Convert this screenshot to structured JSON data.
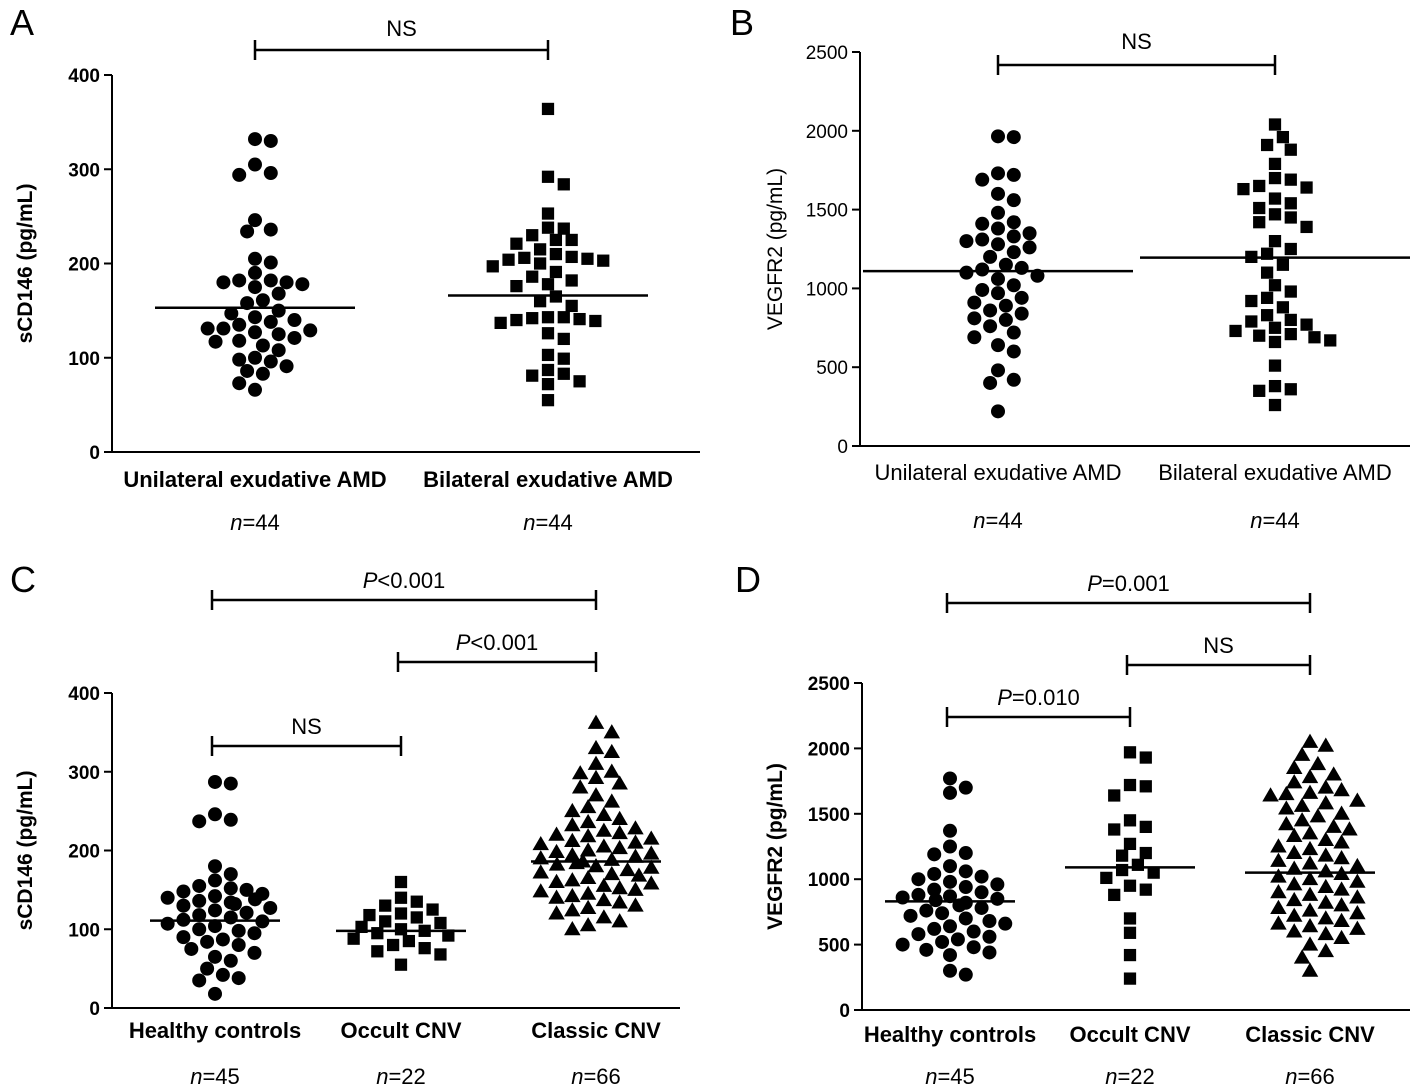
{
  "chart_data": [
    {
      "type": "scatter",
      "panel": "A",
      "ylabel": "sCD146 (pg/mL)",
      "ylim": [
        0,
        400
      ],
      "yticks": [
        0,
        100,
        200,
        300,
        400
      ],
      "bold_text": true,
      "categories": [
        "Unilateral exudative AMD",
        "Bilateral exudative AMD"
      ],
      "n_labels": [
        "44",
        "44"
      ],
      "series": [
        {
          "category": "Unilateral exudative AMD",
          "marker": "circle",
          "mean": 153,
          "values": [
            332,
            330,
            305,
            296,
            294,
            246,
            236,
            234,
            205,
            201,
            190,
            182,
            182,
            180,
            180,
            178,
            175,
            168,
            161,
            158,
            150,
            147,
            143,
            140,
            138,
            135,
            131,
            131,
            129,
            127,
            125,
            121,
            118,
            117,
            113,
            108,
            100,
            98,
            96,
            91,
            86,
            83,
            73,
            66
          ]
        },
        {
          "category": "Bilateral exudative AMD",
          "marker": "square",
          "mean": 166,
          "values": [
            364,
            292,
            284,
            253,
            238,
            237,
            230,
            225,
            225,
            221,
            215,
            210,
            207,
            206,
            205,
            204,
            203,
            200,
            197,
            191,
            186,
            182,
            178,
            176,
            165,
            160,
            155,
            143,
            143,
            142,
            141,
            140,
            139,
            137,
            126,
            120,
            103,
            99,
            87,
            83,
            81,
            75,
            72,
            55
          ]
        }
      ],
      "significance": [
        {
          "from": 0,
          "to": 1,
          "label": "NS",
          "italic_prefix": ""
        }
      ]
    },
    {
      "type": "scatter",
      "panel": "B",
      "ylabel": "VEGFR2 (pg/mL)",
      "ylim": [
        0,
        2500
      ],
      "yticks": [
        0,
        500,
        1000,
        1500,
        2000,
        2500
      ],
      "bold_text": false,
      "categories": [
        "Unilateral exudative AMD",
        "Bilateral exudative AMD"
      ],
      "n_labels": [
        "44",
        "44"
      ],
      "series": [
        {
          "category": "Unilateral exudative AMD",
          "marker": "circle",
          "mean": 1110,
          "values": [
            1965,
            1960,
            1730,
            1720,
            1690,
            1600,
            1560,
            1480,
            1420,
            1410,
            1380,
            1350,
            1330,
            1310,
            1300,
            1280,
            1260,
            1230,
            1200,
            1150,
            1130,
            1120,
            1100,
            1080,
            1060,
            1020,
            990,
            970,
            940,
            910,
            890,
            860,
            840,
            810,
            800,
            760,
            720,
            690,
            640,
            600,
            480,
            420,
            400,
            220
          ]
        },
        {
          "category": "Bilateral exudative AMD",
          "marker": "square",
          "mean": 1195,
          "values": [
            2040,
            1960,
            1910,
            1880,
            1790,
            1700,
            1690,
            1650,
            1640,
            1630,
            1570,
            1540,
            1510,
            1470,
            1450,
            1420,
            1390,
            1300,
            1250,
            1220,
            1200,
            1150,
            1100,
            1020,
            980,
            940,
            920,
            880,
            830,
            800,
            790,
            770,
            750,
            730,
            710,
            700,
            690,
            670,
            660,
            510,
            380,
            360,
            350,
            260
          ]
        }
      ],
      "significance": [
        {
          "from": 0,
          "to": 1,
          "label": "NS",
          "italic_prefix": ""
        }
      ]
    },
    {
      "type": "scatter",
      "panel": "C",
      "ylabel": "sCD146 (pg/mL)",
      "ylim": [
        0,
        400
      ],
      "yticks": [
        0,
        100,
        200,
        300,
        400
      ],
      "bold_text": true,
      "categories": [
        "Healthy controls",
        "Occult CNV",
        "Classic CNV"
      ],
      "n_labels": [
        "45",
        "22",
        "66"
      ],
      "series": [
        {
          "category": "Healthy controls",
          "marker": "circle",
          "mean": 111,
          "values": [
            287,
            285,
            246,
            239,
            237,
            180,
            170,
            162,
            155,
            152,
            150,
            148,
            145,
            142,
            140,
            138,
            136,
            134,
            132,
            130,
            127,
            124,
            121,
            118,
            115,
            112,
            110,
            107,
            104,
            100,
            98,
            95,
            90,
            87,
            84,
            80,
            75,
            70,
            65,
            60,
            50,
            42,
            38,
            35,
            18
          ]
        },
        {
          "category": "Occult CNV",
          "marker": "square",
          "mean": 98,
          "values": [
            160,
            140,
            135,
            130,
            125,
            120,
            118,
            115,
            110,
            108,
            103,
            100,
            98,
            95,
            92,
            88,
            85,
            80,
            76,
            72,
            68,
            55
          ]
        },
        {
          "category": "Classic CNV",
          "marker": "triangle",
          "mean": 186,
          "values": [
            362,
            350,
            330,
            325,
            310,
            300,
            298,
            292,
            285,
            280,
            270,
            262,
            255,
            250,
            245,
            240,
            236,
            232,
            228,
            225,
            222,
            220,
            218,
            215,
            212,
            210,
            208,
            205,
            203,
            200,
            198,
            196,
            194,
            192,
            190,
            188,
            186,
            184,
            182,
            180,
            178,
            175,
            172,
            170,
            168,
            165,
            162,
            160,
            158,
            155,
            152,
            150,
            148,
            145,
            142,
            140,
            137,
            134,
            130,
            127,
            124,
            120,
            115,
            110,
            105,
            100
          ]
        }
      ],
      "significance": [
        {
          "from": 0,
          "to": 1,
          "label": "NS",
          "italic_prefix": ""
        },
        {
          "from": 1,
          "to": 2,
          "label": "<0.001",
          "italic_prefix": "P"
        },
        {
          "from": 0,
          "to": 2,
          "label": "<0.001",
          "italic_prefix": "P"
        }
      ]
    },
    {
      "type": "scatter",
      "panel": "D",
      "ylabel": "VEGFR2 (pg/mL)",
      "ylim": [
        0,
        2500
      ],
      "yticks": [
        0,
        500,
        1000,
        1500,
        2000,
        2500
      ],
      "bold_text": true,
      "categories": [
        "Healthy controls",
        "Occult CNV",
        "Classic CNV"
      ],
      "n_labels": [
        "45",
        "22",
        "66"
      ],
      "series": [
        {
          "category": "Healthy controls",
          "marker": "circle",
          "mean": 830,
          "values": [
            1770,
            1700,
            1660,
            1370,
            1250,
            1200,
            1190,
            1100,
            1060,
            1040,
            1020,
            1000,
            980,
            960,
            940,
            920,
            900,
            880,
            870,
            860,
            850,
            840,
            820,
            800,
            780,
            760,
            740,
            720,
            700,
            680,
            660,
            640,
            620,
            600,
            580,
            560,
            540,
            520,
            500,
            480,
            460,
            440,
            420,
            300,
            270
          ]
        },
        {
          "category": "Occult CNV",
          "marker": "square",
          "mean": 1090,
          "values": [
            1970,
            1930,
            1720,
            1710,
            1640,
            1450,
            1400,
            1380,
            1270,
            1200,
            1180,
            1110,
            1070,
            1050,
            950,
            920,
            880,
            700,
            590,
            420,
            240,
            1010
          ]
        },
        {
          "category": "Classic CNV",
          "marker": "triangle",
          "mean": 1050,
          "values": [
            2050,
            2020,
            1950,
            1880,
            1850,
            1800,
            1780,
            1740,
            1700,
            1680,
            1660,
            1650,
            1640,
            1600,
            1580,
            1560,
            1540,
            1500,
            1480,
            1450,
            1420,
            1400,
            1380,
            1350,
            1330,
            1300,
            1280,
            1250,
            1230,
            1200,
            1180,
            1160,
            1140,
            1120,
            1100,
            1080,
            1060,
            1040,
            1020,
            1000,
            980,
            960,
            940,
            920,
            900,
            880,
            860,
            840,
            820,
            800,
            780,
            760,
            740,
            720,
            700,
            680,
            660,
            640,
            620,
            600,
            580,
            550,
            500,
            450,
            400,
            300
          ]
        }
      ],
      "significance": [
        {
          "from": 0,
          "to": 1,
          "label": "=0.010",
          "italic_prefix": "P"
        },
        {
          "from": 1,
          "to": 2,
          "label": "NS",
          "italic_prefix": ""
        },
        {
          "from": 0,
          "to": 2,
          "label": "=0.001",
          "italic_prefix": "P"
        }
      ]
    }
  ]
}
